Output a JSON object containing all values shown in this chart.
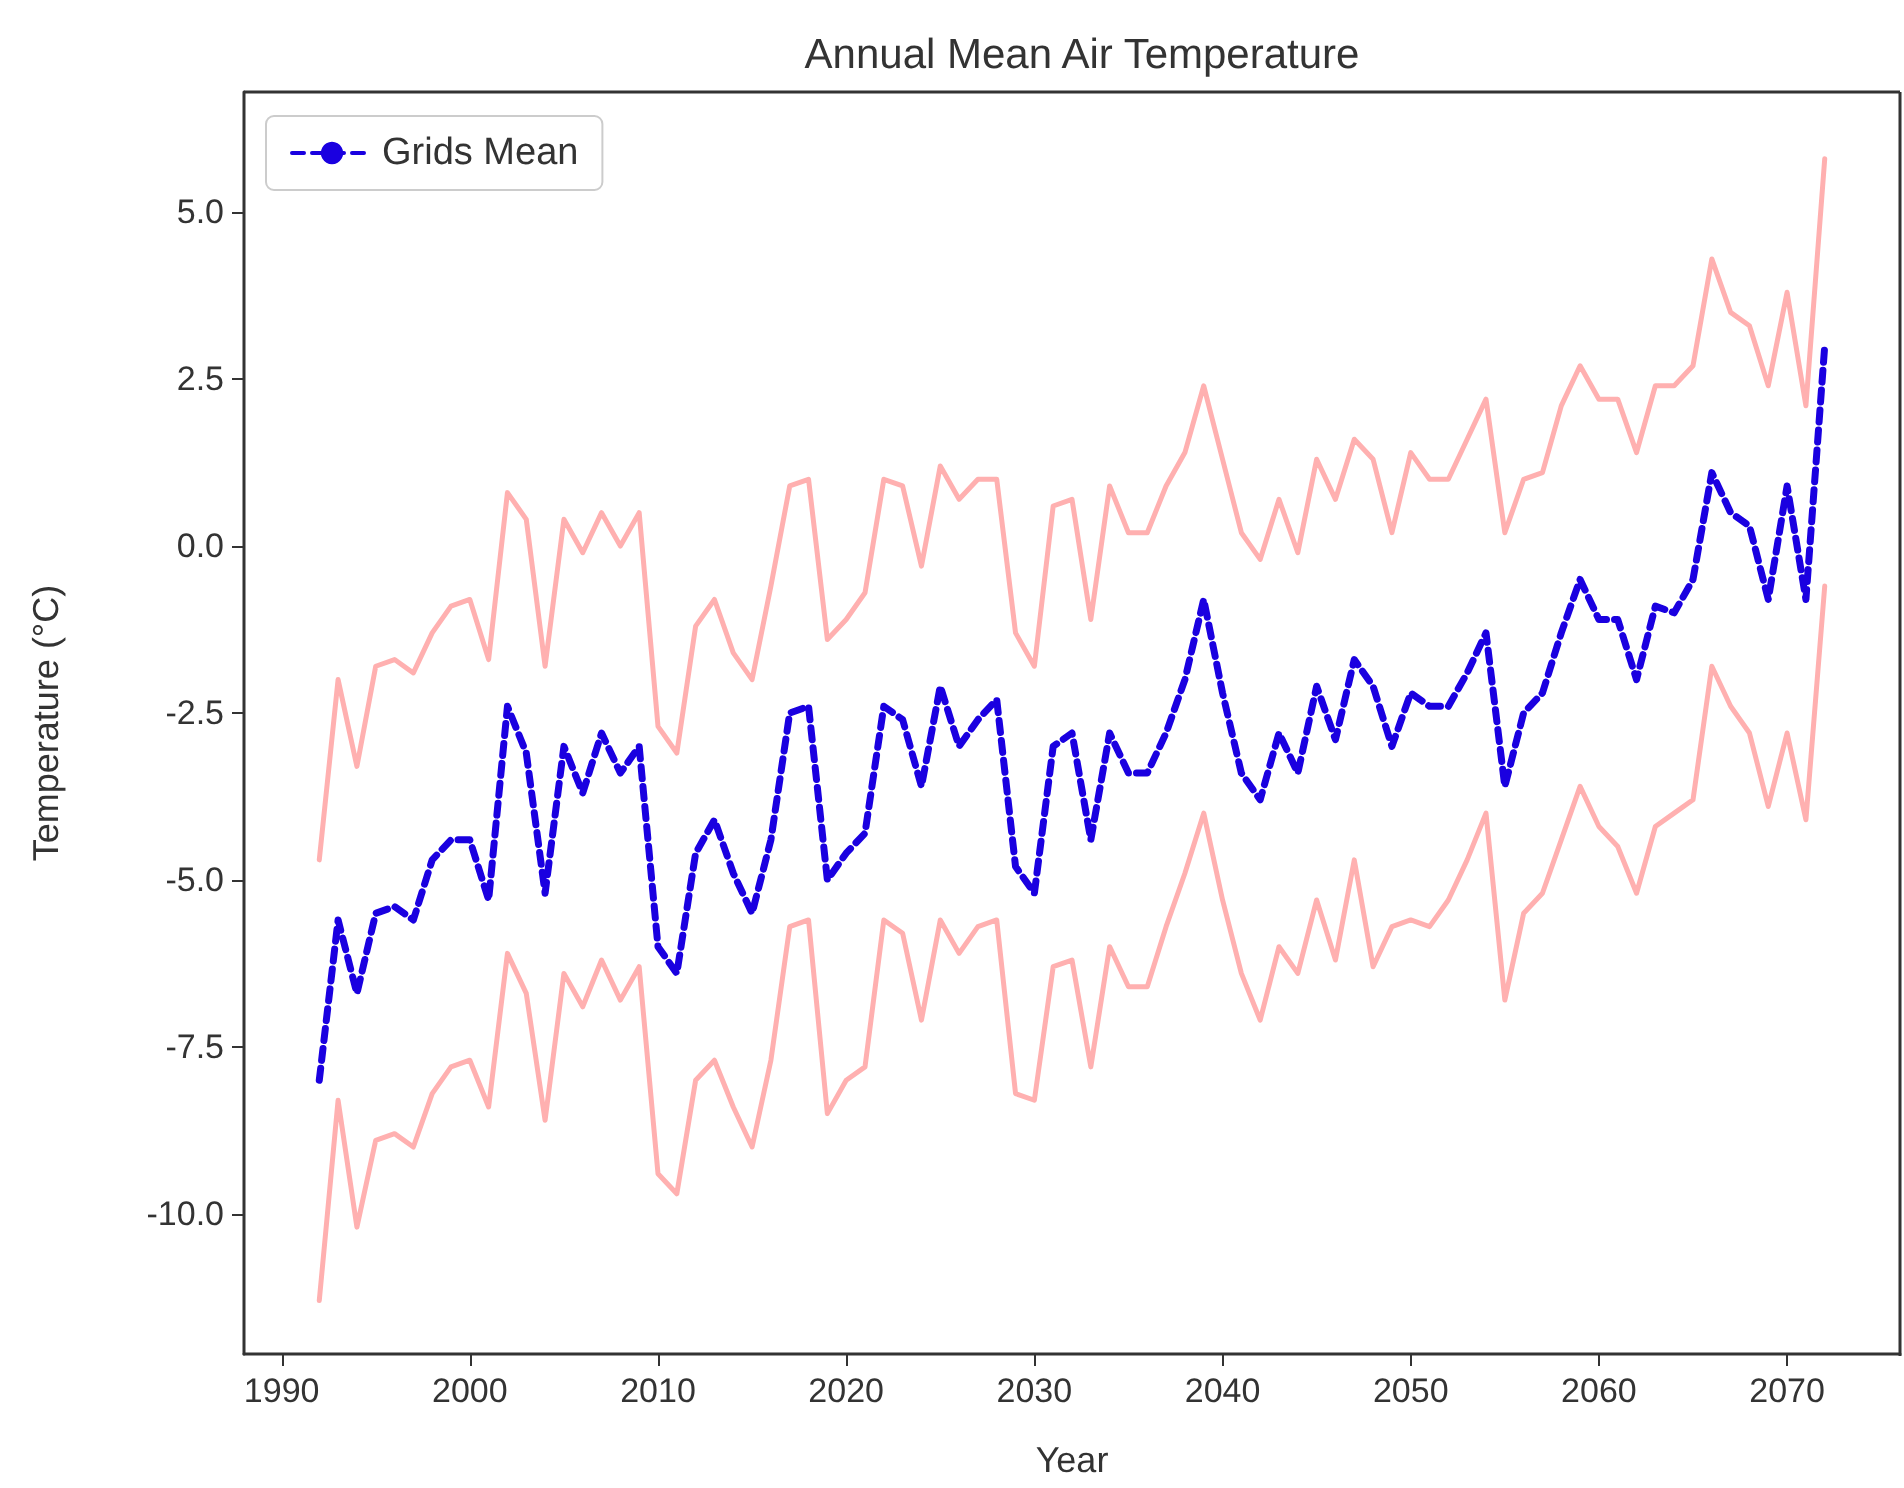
{
  "chart_data": {
    "type": "line",
    "title": "Annual Mean Air Temperature",
    "xlabel": "Year",
    "ylabel": "Temperature (°C)",
    "x": [
      1992,
      1993,
      1994,
      1995,
      1996,
      1997,
      1998,
      1999,
      2000,
      2001,
      2002,
      2003,
      2004,
      2005,
      2006,
      2007,
      2008,
      2009,
      2010,
      2011,
      2012,
      2013,
      2014,
      2015,
      2016,
      2017,
      2018,
      2019,
      2020,
      2021,
      2022,
      2023,
      2024,
      2025,
      2026,
      2027,
      2028,
      2029,
      2030,
      2031,
      2032,
      2033,
      2034,
      2035,
      2036,
      2037,
      2038,
      2039,
      2040,
      2041,
      2042,
      2043,
      2044,
      2045,
      2046,
      2047,
      2048,
      2049,
      2050,
      2051,
      2052,
      2053,
      2054,
      2055,
      2056,
      2057,
      2058,
      2059,
      2060,
      2061,
      2062,
      2063,
      2064,
      2065,
      2066,
      2067,
      2068,
      2069,
      2070,
      2071,
      2072
    ],
    "series": [
      {
        "color": "#ffb0b0",
        "line_style": "solid",
        "values": [
          -4.7,
          -2.0,
          -3.3,
          -1.8,
          -1.7,
          -1.9,
          -1.3,
          -0.9,
          -0.8,
          -1.7,
          0.8,
          0.4,
          -1.8,
          0.4,
          -0.1,
          0.5,
          0.0,
          0.5,
          -2.7,
          -3.1,
          -1.2,
          -0.8,
          -1.6,
          -2.0,
          -0.6,
          0.9,
          1.0,
          -1.4,
          -1.1,
          -0.7,
          1.0,
          0.9,
          -0.3,
          1.2,
          0.7,
          1.0,
          1.0,
          -1.3,
          -1.8,
          0.6,
          0.7,
          -1.1,
          0.9,
          0.2,
          0.2,
          0.9,
          1.4,
          2.4,
          1.3,
          0.2,
          -0.2,
          0.7,
          -0.1,
          1.3,
          0.7,
          1.6,
          1.3,
          0.2,
          1.4,
          1.0,
          1.0,
          1.6,
          2.2,
          0.2,
          1.0,
          1.1,
          2.1,
          2.7,
          2.2,
          2.2,
          1.4,
          2.4,
          2.4,
          2.7,
          4.3,
          3.5,
          3.3,
          2.4,
          3.8,
          2.1,
          5.8
        ]
      },
      {
        "color": "#ffb0b0",
        "line_style": "solid",
        "values": [
          -11.3,
          -8.3,
          -10.2,
          -8.9,
          -8.8,
          -9.0,
          -8.2,
          -7.8,
          -7.7,
          -8.4,
          -6.1,
          -6.7,
          -8.6,
          -6.4,
          -6.9,
          -6.2,
          -6.8,
          -6.3,
          -9.4,
          -9.7,
          -8.0,
          -7.7,
          -8.4,
          -9.0,
          -7.7,
          -5.7,
          -5.6,
          -8.5,
          -8.0,
          -7.8,
          -5.6,
          -5.8,
          -7.1,
          -5.6,
          -6.1,
          -5.7,
          -5.6,
          -8.2,
          -8.3,
          -6.3,
          -6.2,
          -7.8,
          -6.0,
          -6.6,
          -6.6,
          -5.7,
          -4.9,
          -4.0,
          -5.3,
          -6.4,
          -7.1,
          -6.0,
          -6.4,
          -5.3,
          -6.2,
          -4.7,
          -6.3,
          -5.7,
          -5.6,
          -5.7,
          -5.3,
          -4.7,
          -4.0,
          -6.8,
          -5.5,
          -5.2,
          -4.4,
          -3.6,
          -4.2,
          -4.5,
          -5.2,
          -4.2,
          -4.0,
          -3.8,
          -1.8,
          -2.4,
          -2.8,
          -3.9,
          -2.8,
          -4.1,
          -0.6
        ]
      },
      {
        "name": "Grids Mean",
        "color": "#1a00e0",
        "line_style": "dashed",
        "values": [
          -8.0,
          -5.6,
          -6.7,
          -5.5,
          -5.4,
          -5.6,
          -4.7,
          -4.4,
          -4.4,
          -5.3,
          -2.4,
          -3.1,
          -5.2,
          -3.0,
          -3.7,
          -2.8,
          -3.4,
          -3.0,
          -6.0,
          -6.4,
          -4.6,
          -4.1,
          -4.9,
          -5.5,
          -4.4,
          -2.5,
          -2.4,
          -5.0,
          -4.6,
          -4.3,
          -2.4,
          -2.6,
          -3.6,
          -2.1,
          -3.0,
          -2.6,
          -2.3,
          -4.8,
          -5.2,
          -3.0,
          -2.8,
          -4.4,
          -2.8,
          -3.4,
          -3.4,
          -2.8,
          -2.0,
          -0.8,
          -2.2,
          -3.4,
          -3.8,
          -2.8,
          -3.4,
          -2.1,
          -2.9,
          -1.7,
          -2.1,
          -3.0,
          -2.2,
          -2.4,
          -2.4,
          -1.9,
          -1.3,
          -3.6,
          -2.5,
          -2.2,
          -1.3,
          -0.5,
          -1.1,
          -1.1,
          -2.0,
          -0.9,
          -1.0,
          -0.5,
          1.1,
          0.5,
          0.3,
          -0.8,
          0.9,
          -0.8,
          3.0
        ]
      }
    ],
    "xlim": [
      1988,
      2076
    ],
    "xticks": [
      1990,
      2000,
      2010,
      2020,
      2030,
      2040,
      2050,
      2060,
      2070
    ],
    "ylim": [
      -12.1,
      6.8
    ],
    "yticks": [
      {
        "value": -10,
        "label": "-10.0"
      },
      {
        "value": -7.5,
        "label": "-7.5"
      },
      {
        "value": -5,
        "label": "-5.0"
      },
      {
        "value": -2.5,
        "label": "-2.5"
      },
      {
        "value": 0,
        "label": "0.0"
      },
      {
        "value": 2.5,
        "label": "2.5"
      },
      {
        "value": 5,
        "label": "5.0"
      }
    ],
    "grid": false,
    "legend": "top left",
    "marker": "none"
  }
}
